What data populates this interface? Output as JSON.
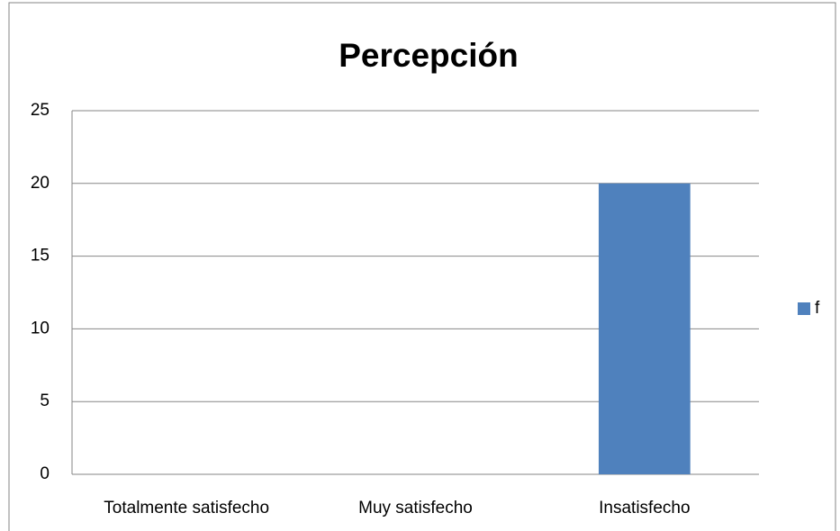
{
  "chart_data": {
    "type": "bar",
    "title": "Percepción",
    "categories": [
      "Totalmente satisfecho",
      "Muy satisfecho",
      "Insatisfecho"
    ],
    "series": [
      {
        "name": "f",
        "color": "#4f81bd",
        "values": [
          0,
          0,
          20
        ]
      }
    ],
    "ylim": [
      0,
      25
    ],
    "yticks": [
      0,
      5,
      10,
      15,
      20,
      25
    ],
    "grid": true,
    "legend": "right"
  }
}
